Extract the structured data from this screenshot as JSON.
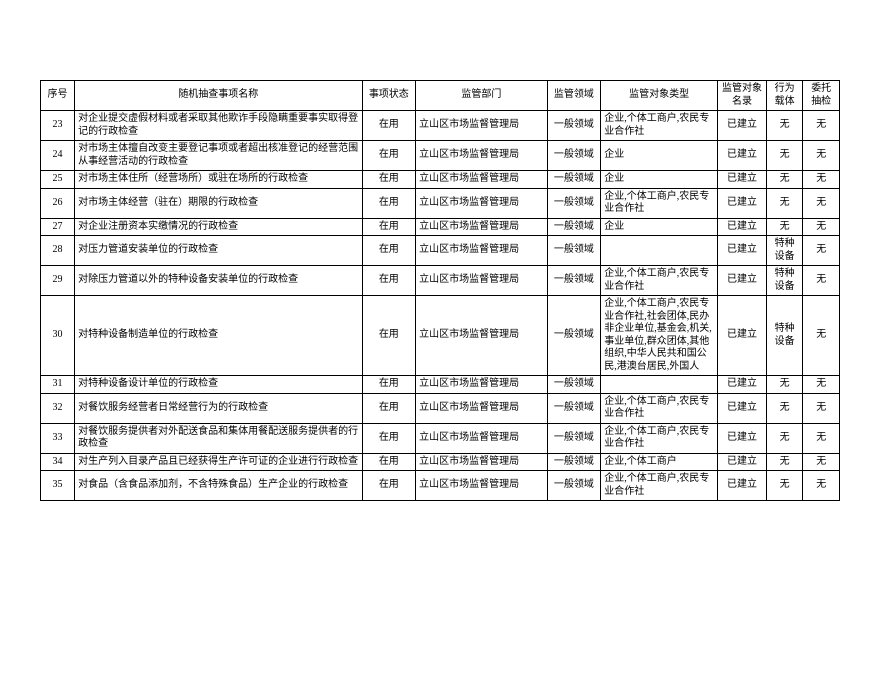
{
  "table": {
    "headers": [
      "序号",
      "随机抽查事项名称",
      "事项状态",
      "监管部门",
      "监管领域",
      "监管对象类型",
      "监管对象名录",
      "行为载体",
      "委托抽检"
    ],
    "rows": [
      [
        "23",
        "对企业提交虚假材料或者采取其他欺诈手段隐瞒重要事实取得登记的行政检查",
        "在用",
        "立山区市场监督管理局",
        "一般领域",
        "企业,个体工商户,农民专业合作社",
        "已建立",
        "无",
        "无"
      ],
      [
        "24",
        "对市场主体擅自改变主要登记事项或者超出核准登记的经营范围从事经营活动的行政检查",
        "在用",
        "立山区市场监督管理局",
        "一般领域",
        "企业",
        "已建立",
        "无",
        "无"
      ],
      [
        "25",
        "对市场主体住所（经营场所）或驻在场所的行政检查",
        "在用",
        "立山区市场监督管理局",
        "一般领域",
        "企业",
        "已建立",
        "无",
        "无"
      ],
      [
        "26",
        "对市场主体经营（驻在）期限的行政检查",
        "在用",
        "立山区市场监督管理局",
        "一般领域",
        "企业,个体工商户,农民专业合作社",
        "已建立",
        "无",
        "无"
      ],
      [
        "27",
        "对企业注册资本实缴情况的行政检查",
        "在用",
        "立山区市场监督管理局",
        "一般领域",
        "企业",
        "已建立",
        "无",
        "无"
      ],
      [
        "28",
        "对压力管道安装单位的行政检查",
        "在用",
        "立山区市场监督管理局",
        "一般领域",
        "",
        "已建立",
        "特种设备",
        "无"
      ],
      [
        "29",
        "对除压力管道以外的特种设备安装单位的行政检查",
        "在用",
        "立山区市场监督管理局",
        "一般领域",
        "企业,个体工商户,农民专业合作社",
        "已建立",
        "特种设备",
        "无"
      ],
      [
        "30",
        "对特种设备制造单位的行政检查",
        "在用",
        "立山区市场监督管理局",
        "一般领域",
        "企业,个体工商户,农民专业合作社,社会团体,民办非企业单位,基金会,机关,事业单位,群众团体,其他组织,中华人民共和国公民,港澳台居民,外国人",
        "已建立",
        "特种设备",
        "无"
      ],
      [
        "31",
        "对特种设备设计单位的行政检查",
        "在用",
        "立山区市场监督管理局",
        "一般领域",
        "",
        "已建立",
        "无",
        "无"
      ],
      [
        "32",
        "对餐饮服务经营者日常经营行为的行政检查",
        "在用",
        "立山区市场监督管理局",
        "一般领域",
        "企业,个体工商户,农民专业合作社",
        "已建立",
        "无",
        "无"
      ],
      [
        "33",
        "对餐饮服务提供者对外配送食品和集体用餐配送服务提供者的行政检查",
        "在用",
        "立山区市场监督管理局",
        "一般领域",
        "企业,个体工商户,农民专业合作社",
        "已建立",
        "无",
        "无"
      ],
      [
        "34",
        "对生产列入目录产品且已经获得生产许可证的企业进行行政检查",
        "在用",
        "立山区市场监督管理局",
        "一般领域",
        "企业,个体工商户",
        "已建立",
        "无",
        "无"
      ],
      [
        "35",
        "对食品（含食品添加剂，不含特殊食品）生产企业的行政检查",
        "在用",
        "立山区市场监督管理局",
        "一般领域",
        "企业,个体工商户,农民专业合作社",
        "已建立",
        "无",
        "无"
      ]
    ],
    "alignments": [
      "center",
      "left",
      "center",
      "left",
      "center",
      "left",
      "center",
      "center",
      "center"
    ]
  }
}
